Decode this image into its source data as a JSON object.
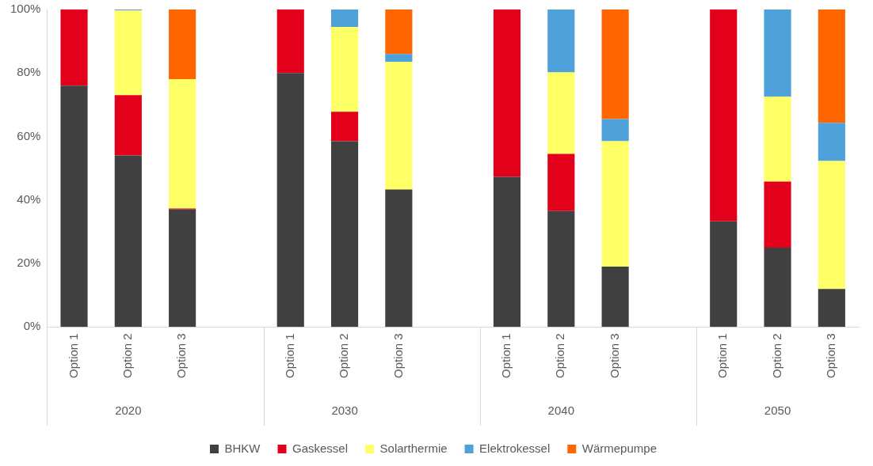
{
  "chart_data": {
    "type": "bar",
    "stacked": true,
    "categories": [
      "Option 1",
      "Option 2",
      "Option 3",
      null,
      "Option 1",
      "Option 2",
      "Option 3",
      null,
      "Option 1",
      "Option 2",
      "Option 3",
      null,
      "Option 1",
      "Option 2",
      "Option 3"
    ],
    "series": [
      {
        "name": "BHKW",
        "color": "#404040",
        "values": [
          76,
          54,
          37,
          null,
          80,
          58.5,
          43.3,
          null,
          47.3,
          36.5,
          19,
          null,
          33.3,
          25,
          12
        ]
      },
      {
        "name": "Gaskessel",
        "color": "#e3001b",
        "values": [
          24,
          19,
          0.3,
          null,
          20,
          9.3,
          0,
          null,
          52.7,
          18,
          0,
          null,
          66.7,
          20.8,
          0
        ]
      },
      {
        "name": "Solarthermie",
        "color": "#ffff66",
        "values": [
          0,
          26.7,
          40.7,
          null,
          0,
          26.7,
          40.2,
          null,
          0,
          25.7,
          39.5,
          null,
          0,
          26.7,
          40.3
        ]
      },
      {
        "name": "Elektrokessel",
        "color": "#4ea1d9",
        "values": [
          0,
          0.3,
          0,
          null,
          0,
          5.5,
          2.5,
          null,
          0,
          19.8,
          7,
          null,
          0,
          27.5,
          12
        ]
      },
      {
        "name": "Wärmepumpe",
        "color": "#ff6600",
        "values": [
          0,
          0,
          22,
          null,
          0,
          0,
          14,
          null,
          0,
          0,
          34.5,
          null,
          0,
          0,
          35.7
        ]
      }
    ],
    "ylim": [
      0,
      100
    ],
    "yticks": [
      {
        "value": 0,
        "label": "0%"
      },
      {
        "value": 20,
        "label": "20%"
      },
      {
        "value": 40,
        "label": "40%"
      },
      {
        "value": 60,
        "label": "60%"
      },
      {
        "value": 80,
        "label": "80%"
      },
      {
        "value": 100,
        "label": "100%"
      }
    ],
    "grid": false,
    "legend": "bottom",
    "annotations": [
      "2020",
      "2030",
      "2040",
      "2050"
    ]
  }
}
